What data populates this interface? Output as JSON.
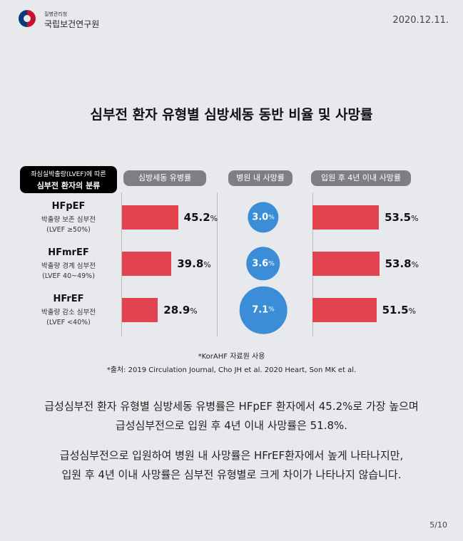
{
  "header": {
    "org_sub": "질병관리청",
    "org_name": "국립보건연구원",
    "date": "2020.12.11."
  },
  "title": "심부전 환자 유형별 심방세동 동반 비율 및 사망률",
  "classification": {
    "line1": "좌심실박출량(LVEF)에 따른",
    "line2": "심부전 환자의 분류"
  },
  "chart_data": {
    "type": "bar",
    "title": "심부전 환자 유형별 심방세동 동반 비율 및 사망률",
    "categories": [
      {
        "name": "HFpEF",
        "desc": "박출량 보존 심부전",
        "range": "(LVEF  ≥50%)"
      },
      {
        "name": "HFmrEF",
        "desc": "박출량 경계 심부전",
        "range": "(LVEF 40~49%)"
      },
      {
        "name": "HFrEF",
        "desc": "박출량 감소 심부전",
        "range": "(LVEF <40%)"
      }
    ],
    "series": [
      {
        "name": "심방세동 유병률",
        "style": "bar",
        "values": [
          45.2,
          39.8,
          28.9
        ],
        "labels": [
          "45.2",
          "39.8",
          "28.9"
        ]
      },
      {
        "name": "병원 내 사망률",
        "style": "bubble",
        "values": [
          3.0,
          3.6,
          7.1
        ],
        "labels": [
          "3.0",
          "3.6",
          "7.1"
        ]
      },
      {
        "name": "입원 후 4년 이내 사망률",
        "style": "bar",
        "values": [
          53.5,
          53.8,
          51.5
        ],
        "labels": [
          "53.5",
          "53.8",
          "51.5"
        ]
      }
    ],
    "unit": "%",
    "colors": {
      "bar": "#e3434e",
      "bubble": "#3a8dd6",
      "pill": "#7d7f84"
    }
  },
  "notes": [
    "*KorAHF 자료원 사용",
    "*출처: 2019 Circulation Journal, Cho JH et al. 2020 Heart, Son MK et al."
  ],
  "paragraphs": [
    [
      "급성심부전 환자 유형별 심방세동 유병률은 HFpEF 환자에서 45.2%로 가장 높으며",
      "급성심부전으로 입원 후 4년 이내 사망률은 51.8%."
    ],
    [
      "급성심부전으로 입원하여 병원 내 사망률은 HFrEF환자에서 높게 나타나지만,",
      "입원 후 4년 이내 사망률은 심부전 유형별로 크게 차이가 나타나지 않습니다."
    ]
  ],
  "page": "5/10"
}
